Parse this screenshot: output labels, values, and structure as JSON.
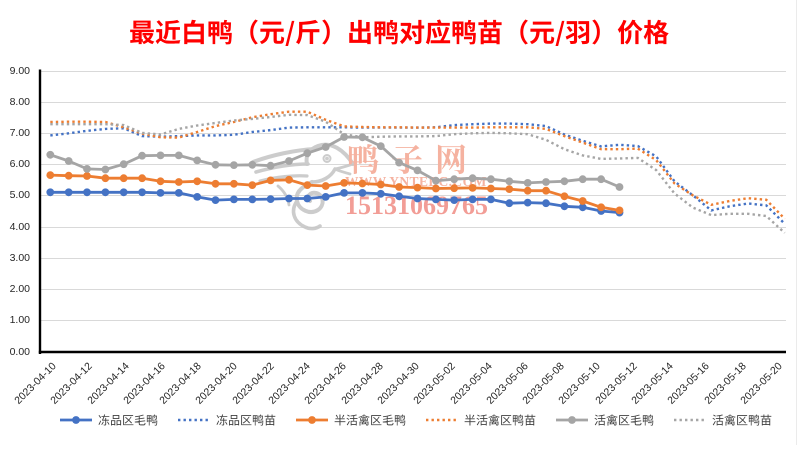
{
  "title": {
    "text": "最近白鸭（元/斤）出鸭对应鸭苗（元/羽）价格",
    "color": "#FF0000"
  },
  "watermark": {
    "site_name": "鸭子网",
    "url": "WWW.YNTEDC.COM",
    "phone": "15131069765",
    "text_color": "#F5B2A0",
    "phone_color": "#F29D96"
  },
  "chart_data": {
    "type": "line",
    "x": [
      "2023-04-10",
      "2023-04-11",
      "2023-04-12",
      "2023-04-13",
      "2023-04-14",
      "2023-04-15",
      "2023-04-16",
      "2023-04-17",
      "2023-04-18",
      "2023-04-19",
      "2023-04-20",
      "2023-04-21",
      "2023-04-22",
      "2023-04-23",
      "2023-04-24",
      "2023-04-25",
      "2023-04-26",
      "2023-04-27",
      "2023-04-28",
      "2023-04-29",
      "2023-04-30",
      "2023-05-01",
      "2023-05-02",
      "2023-05-03",
      "2023-05-04",
      "2023-05-05",
      "2023-05-06",
      "2023-05-07",
      "2023-05-08",
      "2023-05-09",
      "2023-05-10",
      "2023-05-11",
      "2023-05-12",
      "2023-05-13",
      "2023-05-14",
      "2023-05-15",
      "2023-05-16",
      "2023-05-17",
      "2023-05-18",
      "2023-05-19",
      "2023-05-20"
    ],
    "x_tick_every": 2,
    "ylabel": "",
    "xlabel": "",
    "ylim": [
      0.0,
      9.0
    ],
    "ytick_step": 1.0,
    "ytick_format": "0.00",
    "grid": "horizontal",
    "legend_position": "bottom",
    "series": [
      {
        "name": "冻品区毛鸭",
        "color": "#4472C4",
        "style": "solid",
        "marker": "circle",
        "values": [
          5.1,
          5.1,
          5.1,
          5.1,
          5.1,
          5.1,
          5.08,
          5.08,
          4.95,
          4.85,
          4.87,
          4.87,
          4.88,
          4.9,
          4.9,
          4.95,
          5.08,
          5.08,
          5.05,
          4.97,
          4.9,
          4.87,
          4.85,
          4.87,
          4.87,
          4.75,
          4.77,
          4.75,
          4.65,
          4.62,
          4.5,
          4.45,
          null,
          null,
          null,
          null,
          null,
          null,
          null,
          null,
          null
        ]
      },
      {
        "name": "冻品区鸭苗",
        "color": "#4472C4",
        "style": "dotted",
        "marker": "none",
        "values": [
          6.92,
          6.99,
          7.07,
          7.13,
          7.15,
          6.9,
          6.88,
          6.9,
          6.92,
          6.92,
          6.94,
          7.03,
          7.09,
          7.17,
          7.18,
          7.18,
          7.18,
          7.17,
          7.17,
          7.17,
          7.17,
          7.18,
          7.25,
          7.28,
          7.3,
          7.3,
          7.28,
          7.22,
          6.95,
          6.75,
          6.57,
          6.62,
          6.58,
          6.25,
          5.45,
          5.0,
          4.52,
          4.65,
          4.74,
          4.68,
          4.09
        ]
      },
      {
        "name": "半活禽区毛鸭",
        "color": "#ED7D31",
        "style": "solid",
        "marker": "circle",
        "values": [
          5.65,
          5.63,
          5.62,
          5.55,
          5.55,
          5.55,
          5.45,
          5.43,
          5.45,
          5.37,
          5.37,
          5.33,
          5.48,
          5.5,
          5.33,
          5.3,
          5.4,
          5.38,
          5.35,
          5.27,
          5.25,
          5.22,
          5.23,
          5.24,
          5.22,
          5.2,
          5.15,
          5.15,
          4.97,
          4.82,
          4.62,
          4.52,
          null,
          null,
          null,
          null,
          null,
          null,
          null,
          null,
          null
        ]
      },
      {
        "name": "半活禽区鸭苗",
        "color": "#ED7D31",
        "style": "dotted",
        "marker": "none",
        "values": [
          7.35,
          7.36,
          7.36,
          7.35,
          7.18,
          6.98,
          6.86,
          6.85,
          7.03,
          7.22,
          7.35,
          7.5,
          7.6,
          7.68,
          7.68,
          7.42,
          7.21,
          7.19,
          7.18,
          7.18,
          7.17,
          7.17,
          7.17,
          7.17,
          7.18,
          7.18,
          7.18,
          7.13,
          6.9,
          6.69,
          6.48,
          6.48,
          6.5,
          6.13,
          5.38,
          5.0,
          4.7,
          4.82,
          4.91,
          4.86,
          4.25
        ]
      },
      {
        "name": "活禽区毛鸭",
        "color": "#A5A5A5",
        "style": "solid",
        "marker": "circle",
        "values": [
          6.3,
          6.1,
          5.85,
          5.83,
          6.0,
          6.27,
          6.28,
          6.28,
          6.12,
          5.98,
          5.97,
          5.98,
          5.95,
          6.1,
          6.35,
          6.55,
          6.87,
          6.86,
          6.58,
          6.05,
          5.8,
          5.47,
          5.52,
          5.55,
          5.52,
          5.45,
          5.4,
          5.43,
          5.45,
          5.52,
          5.52,
          5.27,
          null,
          null,
          null,
          null,
          null,
          null,
          null,
          null,
          null
        ]
      },
      {
        "name": "活禽区鸭苗",
        "color": "#A5A5A5",
        "style": "dotted",
        "marker": "none",
        "values": [
          7.28,
          7.28,
          7.28,
          7.28,
          7.25,
          7.0,
          6.95,
          7.13,
          7.24,
          7.32,
          7.4,
          7.45,
          7.51,
          7.58,
          7.57,
          7.36,
          6.96,
          6.86,
          6.88,
          6.89,
          6.89,
          6.9,
          6.96,
          6.99,
          7.0,
          6.99,
          6.96,
          6.78,
          6.48,
          6.28,
          6.17,
          6.18,
          6.2,
          5.81,
          5.06,
          4.61,
          4.37,
          4.41,
          4.41,
          4.34,
          3.8
        ]
      }
    ]
  },
  "colors": {
    "background": "#FFFFFF",
    "axis": "#000000",
    "gridline": "#D9D9D9",
    "tick_label": "#262626",
    "legend_label": "#404040",
    "watermark_logo": "#C7C7C7"
  }
}
